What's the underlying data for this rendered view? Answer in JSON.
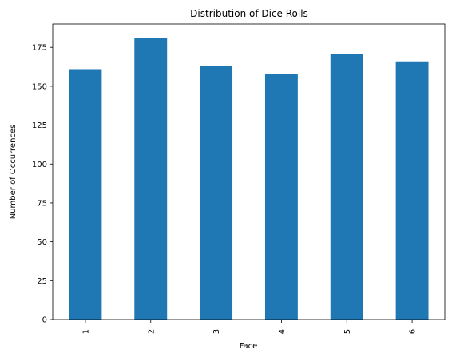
{
  "chart_data": {
    "type": "bar",
    "title": "Distribution of Dice Rolls",
    "xlabel": "Face",
    "ylabel": "Number of Occurrences",
    "categories": [
      "1",
      "2",
      "3",
      "4",
      "5",
      "6"
    ],
    "values": [
      161,
      181,
      163,
      158,
      171,
      166
    ],
    "ylim": [
      0,
      190
    ],
    "yticks": [
      "0",
      "25",
      "50",
      "75",
      "100",
      "125",
      "150",
      "175"
    ],
    "bar_color": "#1f77b4",
    "grid": false,
    "legend": "none",
    "xtick_rotation": "vertical"
  }
}
